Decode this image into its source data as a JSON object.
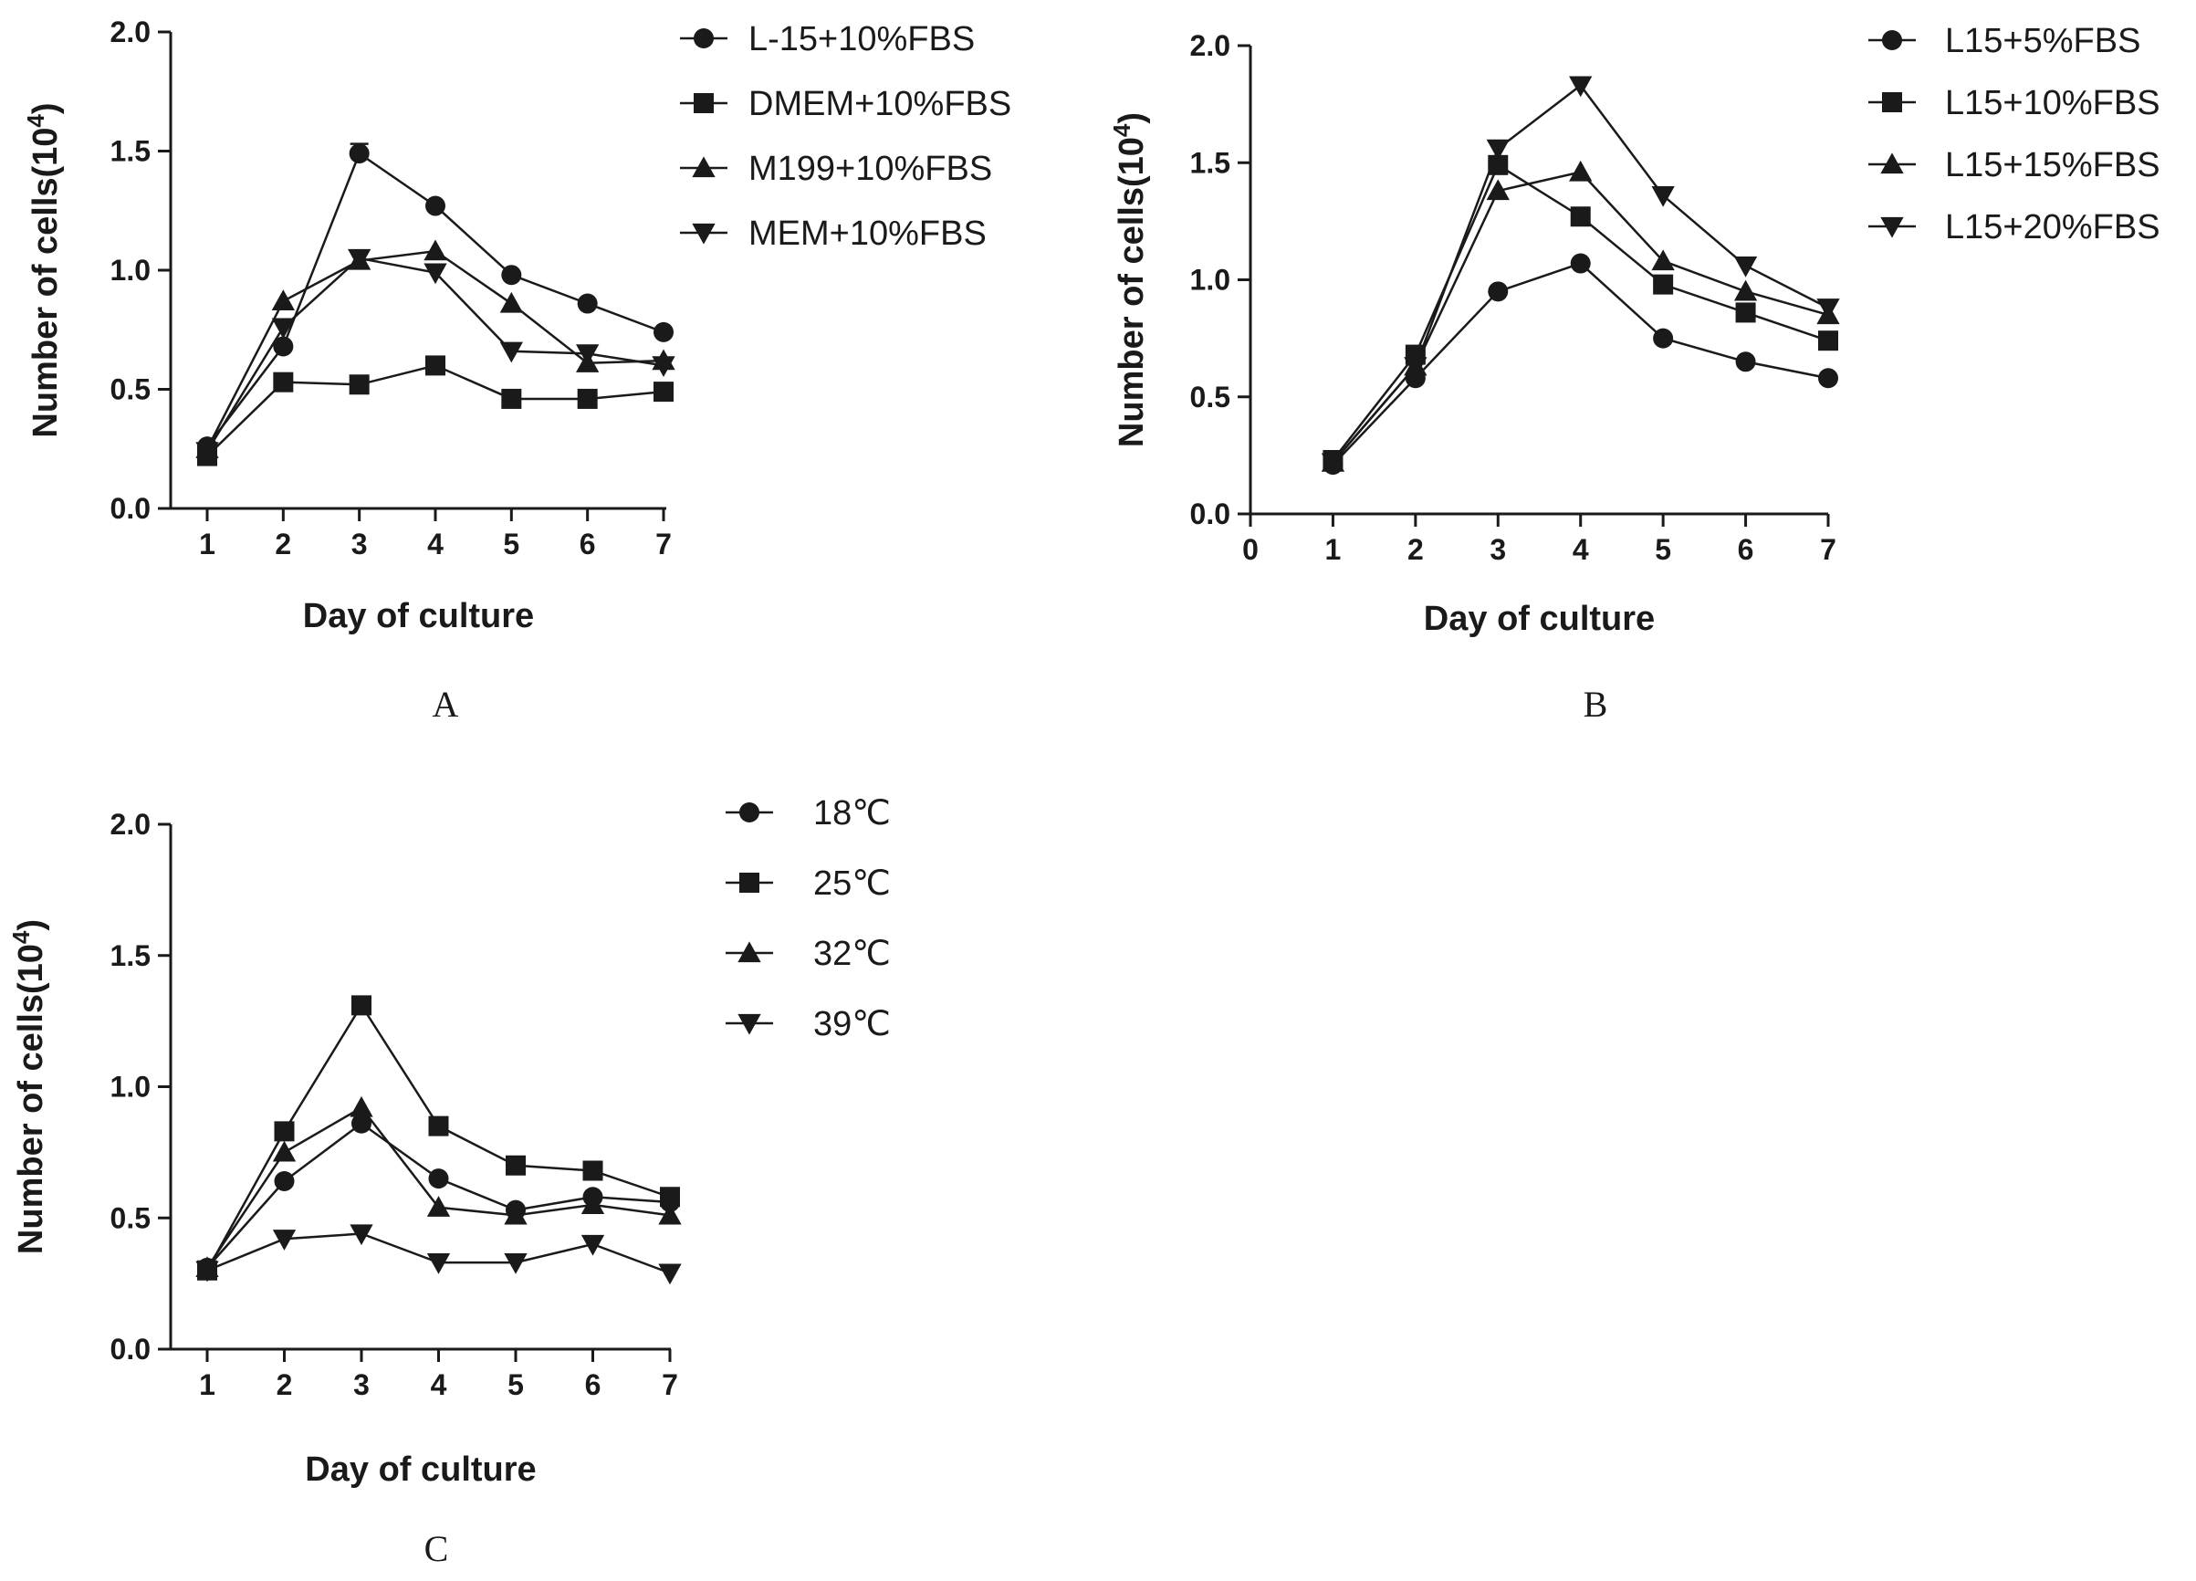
{
  "chart_data": [
    {
      "panel": "A",
      "type": "line",
      "xlabel": "Day of culture",
      "ylabel": "Number of cells(10",
      "ylabel_sup": "4",
      "ylabel_tail": ")",
      "xlim": [
        1,
        7
      ],
      "ylim": [
        0,
        2.0
      ],
      "xticks": [
        "1",
        "2",
        "3",
        "4",
        "5",
        "6",
        "7"
      ],
      "yticks": [
        "0.0",
        "0.5",
        "1.0",
        "1.5",
        "2.0"
      ],
      "grid": false,
      "legend_position": "top-right-outside",
      "x": [
        1,
        2,
        3,
        4,
        5,
        6,
        7
      ],
      "series": [
        {
          "name": "L-15+10%FBS",
          "marker": "circle",
          "values": [
            0.26,
            0.68,
            1.49,
            1.27,
            0.98,
            0.86,
            0.74
          ],
          "error": [
            0,
            0,
            0.04,
            0,
            0,
            0,
            0
          ]
        },
        {
          "name": "DMEM+10%FBS",
          "marker": "square",
          "values": [
            0.22,
            0.53,
            0.52,
            0.6,
            0.46,
            0.46,
            0.49
          ]
        },
        {
          "name": "M199+10%FBS",
          "marker": "triangle-up",
          "values": [
            0.25,
            0.87,
            1.04,
            1.08,
            0.86,
            0.61,
            0.62
          ]
        },
        {
          "name": "MEM+10%FBS",
          "marker": "triangle-down",
          "values": [
            0.24,
            0.76,
            1.05,
            0.99,
            0.66,
            0.65,
            0.6
          ]
        }
      ]
    },
    {
      "panel": "B",
      "type": "line",
      "xlabel": "Day of culture",
      "ylabel": "Number of cells(10",
      "ylabel_sup": "4",
      "ylabel_tail": ")",
      "xlim": [
        0,
        7
      ],
      "ylim": [
        0,
        2.0
      ],
      "xticks": [
        "0",
        "1",
        "2",
        "3",
        "4",
        "5",
        "6",
        "7"
      ],
      "yticks": [
        "0.0",
        "0.5",
        "1.0",
        "1.5",
        "2.0"
      ],
      "grid": false,
      "legend_position": "top-right-outside",
      "x": [
        1,
        2,
        3,
        4,
        5,
        6,
        7
      ],
      "series": [
        {
          "name": "L15+5%FBS",
          "marker": "circle",
          "values": [
            0.21,
            0.58,
            0.95,
            1.07,
            0.75,
            0.65,
            0.58
          ]
        },
        {
          "name": "L15+10%FBS",
          "marker": "square",
          "values": [
            0.23,
            0.68,
            1.49,
            1.27,
            0.98,
            0.86,
            0.74
          ]
        },
        {
          "name": "L15+15%FBS",
          "marker": "triangle-up",
          "values": [
            0.22,
            0.63,
            1.38,
            1.46,
            1.08,
            0.95,
            0.85
          ]
        },
        {
          "name": "L15+20%FBS",
          "marker": "triangle-down",
          "values": [
            0.22,
            0.63,
            1.56,
            1.83,
            1.36,
            1.06,
            0.88
          ]
        }
      ]
    },
    {
      "panel": "C",
      "type": "line",
      "xlabel": "Day of culture",
      "ylabel": "Number of cells(10",
      "ylabel_sup": "4",
      "ylabel_tail": ")",
      "xlim": [
        1,
        7
      ],
      "ylim": [
        0,
        2.0
      ],
      "xticks": [
        "1",
        "2",
        "3",
        "4",
        "5",
        "6",
        "7"
      ],
      "yticks": [
        "0.0",
        "0.5",
        "1.0",
        "1.5",
        "2.0"
      ],
      "grid": false,
      "legend_position": "top-right-outside",
      "x": [
        1,
        2,
        3,
        4,
        5,
        6,
        7
      ],
      "series": [
        {
          "name": "18℃",
          "marker": "circle",
          "values": [
            0.31,
            0.64,
            0.86,
            0.65,
            0.53,
            0.58,
            0.56
          ]
        },
        {
          "name": "25℃",
          "marker": "square",
          "values": [
            0.3,
            0.83,
            1.31,
            0.85,
            0.7,
            0.68,
            0.58
          ]
        },
        {
          "name": "32℃",
          "marker": "triangle-up",
          "values": [
            0.31,
            0.75,
            0.92,
            0.54,
            0.51,
            0.55,
            0.51
          ]
        },
        {
          "name": "39℃",
          "marker": "triangle-down",
          "values": [
            0.3,
            0.42,
            0.44,
            0.33,
            0.33,
            0.4,
            0.29
          ]
        }
      ]
    }
  ],
  "styles": {
    "line_color": "#1a1a1a",
    "marker_color": "#1a1a1a",
    "axis_color": "#1a1a1a",
    "background": "#ffffff"
  }
}
